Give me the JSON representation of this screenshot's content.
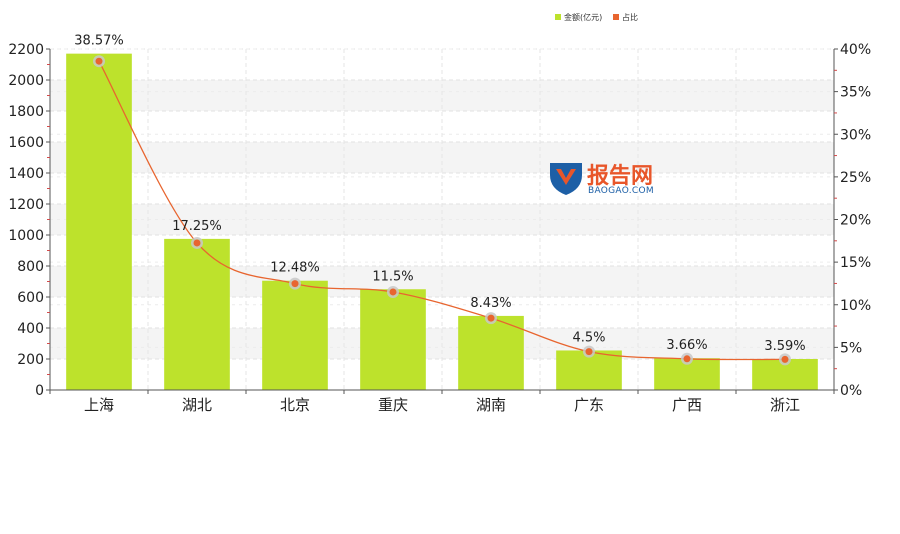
{
  "watermark": {
    "brand": "报告网",
    "site": "BAOGAO.COM"
  },
  "colors": {
    "bar": "#bde22c",
    "line": "#e8652f",
    "point_halo": "#c8c8c8"
  },
  "chart_data": {
    "type": "bar",
    "categories": [
      "上海",
      "湖北",
      "北京",
      "重庆",
      "湖南",
      "广东",
      "广西",
      "浙江"
    ],
    "series": [
      {
        "name": "金额(亿元)",
        "type": "bar",
        "axis": "left",
        "values": [
          2170,
          975,
          705,
          650,
          478,
          255,
          205,
          200
        ]
      },
      {
        "name": "占比",
        "type": "line",
        "axis": "right",
        "smooth": true,
        "values": [
          38.57,
          17.25,
          12.48,
          11.5,
          8.43,
          4.5,
          3.66,
          3.59
        ],
        "labels": [
          "38.57%",
          "17.25%",
          "12.48%",
          "11.5%",
          "8.43%",
          "4.5%",
          "3.66%",
          "3.59%"
        ]
      }
    ],
    "ylim_left": [
      0,
      2200
    ],
    "yticks_left": [
      0,
      200,
      400,
      600,
      800,
      1000,
      1200,
      1400,
      1600,
      1800,
      2000,
      2200
    ],
    "ylim_right": [
      0,
      40
    ],
    "yticks_right": [
      "0%",
      "5%",
      "10%",
      "15%",
      "20%",
      "25%",
      "30%",
      "35%",
      "40%"
    ],
    "grid": true,
    "legend_position": "top-right"
  }
}
